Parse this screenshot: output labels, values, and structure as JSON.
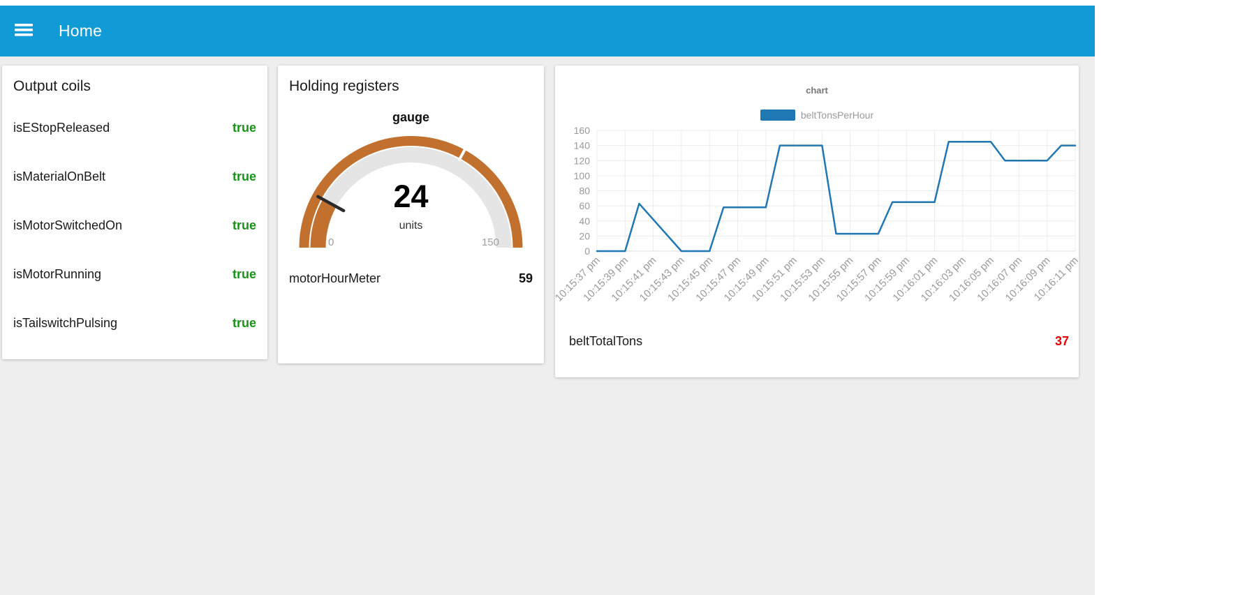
{
  "header": {
    "title": "Home"
  },
  "colors": {
    "header_bg": "#109bd7",
    "true_green": "#189418",
    "value_red": "#e60000",
    "gauge_color": "#c1702d",
    "gauge_track": "#e5e5e5",
    "needle": "#2b2b2b",
    "series_blue": "#1f77b4",
    "axis_text": "#9a9a9a",
    "grid": "#ececec",
    "axis_line": "#d9d9d9"
  },
  "cards": {
    "output_coils": {
      "title": "Output coils",
      "rows": [
        {
          "label": "isEStopReleased",
          "value": "true"
        },
        {
          "label": "isMaterialOnBelt",
          "value": "true"
        },
        {
          "label": "isMotorSwitchedOn",
          "value": "true"
        },
        {
          "label": "isMotorRunning",
          "value": "true"
        },
        {
          "label": "isTailswitchPulsing",
          "value": "true"
        }
      ]
    },
    "holding_registers": {
      "title": "Holding registers",
      "gauge": {
        "title": "gauge",
        "value": "24",
        "units": "units",
        "min": "0",
        "max": "150"
      },
      "meter": {
        "label": "motorHourMeter",
        "value": "59"
      }
    },
    "chart_card": {
      "total": {
        "label": "beltTotalTons",
        "value": "37"
      }
    }
  },
  "chart_data": {
    "type": "line",
    "title": "chart",
    "legend_position": "top",
    "grid": true,
    "ylim": [
      0,
      160
    ],
    "y_ticks": [
      0,
      20,
      40,
      60,
      80,
      100,
      120,
      140,
      160
    ],
    "x_labels": [
      "10:15:37 pm",
      "10:15:39 pm",
      "10:15:41 pm",
      "10:15:43 pm",
      "10:15:45 pm",
      "10:15:47 pm",
      "10:15:49 pm",
      "10:15:51 pm",
      "10:15:53 pm",
      "10:15:55 pm",
      "10:15:57 pm",
      "10:15:59 pm",
      "10:16:01 pm",
      "10:16:03 pm",
      "10:16:05 pm",
      "10:16:07 pm",
      "10:16:09 pm",
      "10:16:11 pm"
    ],
    "x_label_seconds": [
      0,
      2,
      4,
      6,
      8,
      10,
      12,
      14,
      16,
      18,
      20,
      22,
      24,
      26,
      28,
      30,
      32,
      34
    ],
    "series": [
      {
        "name": "beltTonsPerHour",
        "color": "#1f77b4",
        "points_t_v": [
          [
            0,
            0
          ],
          [
            2,
            0
          ],
          [
            3,
            63
          ],
          [
            6,
            0
          ],
          [
            8,
            0
          ],
          [
            9,
            58
          ],
          [
            12,
            58
          ],
          [
            13,
            140
          ],
          [
            16,
            140
          ],
          [
            17,
            23
          ],
          [
            20,
            23
          ],
          [
            21,
            65
          ],
          [
            24,
            65
          ],
          [
            25,
            145
          ],
          [
            28,
            145
          ],
          [
            29,
            120
          ],
          [
            32,
            120
          ],
          [
            33,
            140
          ],
          [
            34,
            140
          ]
        ]
      }
    ]
  }
}
